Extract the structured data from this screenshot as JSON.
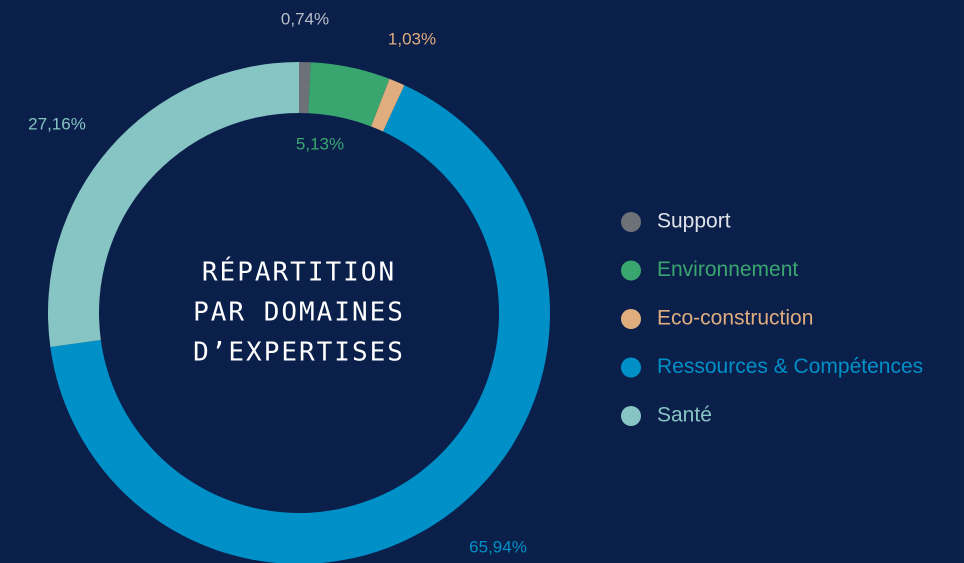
{
  "chart_data": {
    "type": "donut",
    "title_lines": [
      "RÉPARTITION",
      "PAR DOMAINES",
      "D’EXPERTISES"
    ],
    "categories": [
      "Support",
      "Environnement",
      "Eco-construction",
      "Ressources & Compétences",
      "Santé"
    ],
    "values": [
      0.74,
      5.13,
      1.03,
      65.94,
      27.16
    ],
    "value_labels": [
      "0,74%",
      "5,13%",
      "1,03%",
      "65,94%",
      "27,16%"
    ],
    "colors": [
      "#6d7278",
      "#3aa66f",
      "#e0ad7e",
      "#0090c8",
      "#86c5c3"
    ],
    "legend": "right"
  }
}
